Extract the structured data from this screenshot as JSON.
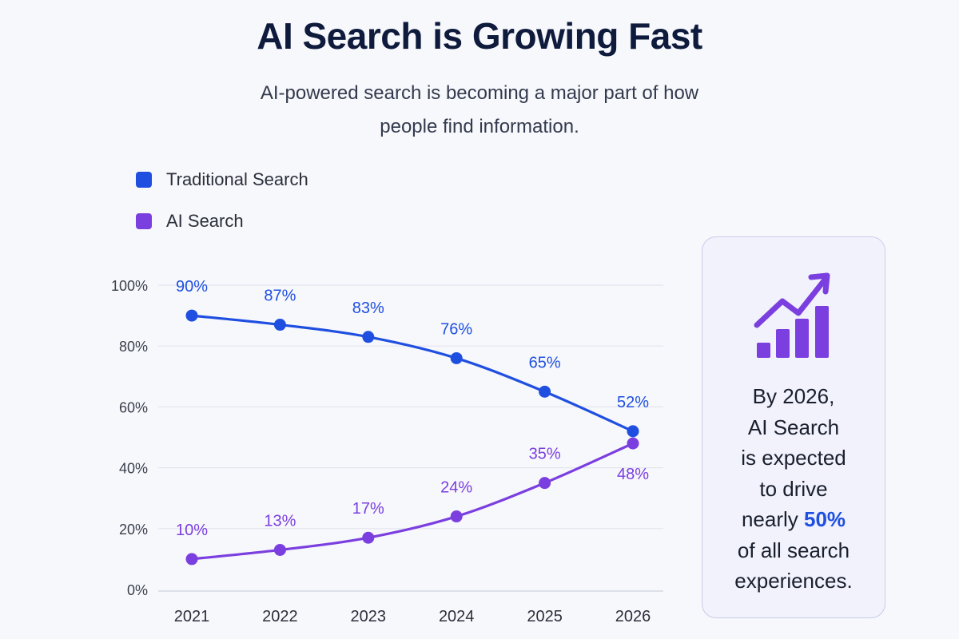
{
  "header": {
    "title": "AI Search is Growing Fast",
    "subtitle": "AI-powered search is becoming a major part of how people find information."
  },
  "legend": [
    {
      "label": "Traditional Search",
      "color": "#1f4fe0"
    },
    {
      "label": "AI Search",
      "color": "#7b3fe0"
    }
  ],
  "chart_data": {
    "type": "line",
    "title": "",
    "xlabel": "",
    "ylabel": "",
    "x": [
      "2021",
      "2022",
      "2023",
      "2024",
      "2025",
      "2026"
    ],
    "ylim": [
      0,
      100
    ],
    "yticks": [
      "0%",
      "20%",
      "40%",
      "60%",
      "80%",
      "100%"
    ],
    "grid": true,
    "legend_position": "top-left",
    "series": [
      {
        "name": "Traditional Search",
        "color": "#1f4fe0",
        "values": [
          90,
          87,
          83,
          76,
          65,
          52
        ],
        "labels": [
          "90%",
          "87%",
          "83%",
          "76%",
          "65%",
          "52%"
        ]
      },
      {
        "name": "AI Search",
        "color": "#7b3fe0",
        "values": [
          10,
          13,
          17,
          24,
          35,
          48
        ],
        "labels": [
          "10%",
          "13%",
          "17%",
          "24%",
          "35%",
          "48%"
        ]
      }
    ]
  },
  "callout": {
    "icon": "growth-chart-icon",
    "line1": "By 2026,",
    "line2": "AI Search",
    "line3": "is expected",
    "line4": "to drive",
    "line5_prefix": "nearly ",
    "highlight": "50%",
    "line6": "of all search",
    "line7": "experiences.",
    "highlight_color": "#1f4fe0",
    "icon_color": "#7b3fe0"
  }
}
